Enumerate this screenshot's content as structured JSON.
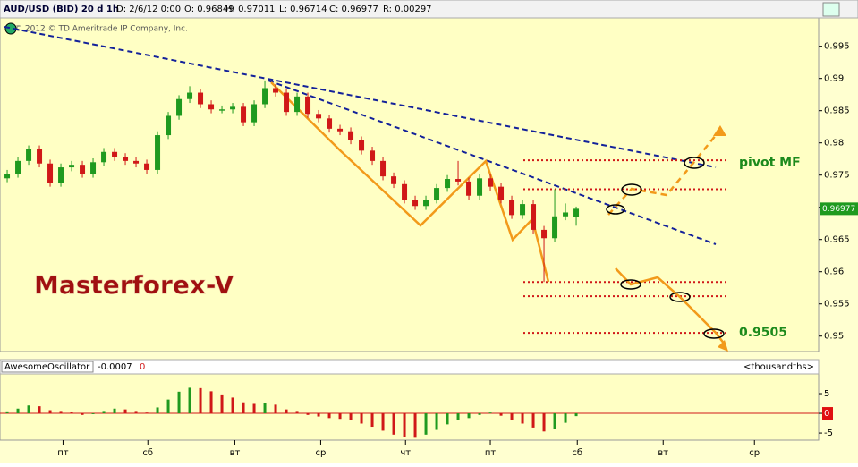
{
  "header": {
    "symbol": "AUD/USD (BID) 20 d 1h",
    "date": "D: 2/6/12 0:00",
    "open": "O: 0.96849",
    "high": "H: 0.97011",
    "low": "L: 0.96714",
    "close": "C: 0.96977",
    "range": "R: 0.00297",
    "copyright": "© 2012 © TD Ameritrade IP Company, Inc.",
    "watermark": "Masterforex-V",
    "pivot": "pivot MF",
    "target": "0.9505"
  },
  "chart_data": [
    {
      "type": "candlestick",
      "up_color": "#1f9a1f",
      "down_color": "#d01818",
      "level_color": "#d01818",
      "xlim": [
        -0.67,
        75.58
      ],
      "xticks": [
        {
          "value": 5.2,
          "label": "пт"
        },
        {
          "value": 13.1,
          "label": "сб"
        },
        {
          "value": 21.2,
          "label": "вт"
        },
        {
          "value": 29.2,
          "label": "ср"
        },
        {
          "value": 37.1,
          "label": "чт"
        },
        {
          "value": 45,
          "label": "пт"
        },
        {
          "value": 53.1,
          "label": "сб"
        },
        {
          "value": 61.1,
          "label": "вт"
        },
        {
          "value": 69.6,
          "label": "ср"
        }
      ],
      "ylim": [
        0.9476,
        0.9994
      ],
      "yticks": [
        0.95,
        0.955,
        0.96,
        0.965,
        0.97,
        0.975,
        0.98,
        0.985,
        0.99,
        0.995
      ],
      "last_price": 0.96977,
      "levels": [
        0.9773,
        0.9728,
        0.9584,
        0.9562,
        0.9505
      ],
      "open": [
        0.9745,
        0.9752,
        0.9772,
        0.979,
        0.9768,
        0.9738,
        0.9762,
        0.9766,
        0.9752,
        0.977,
        0.9786,
        0.9778,
        0.9772,
        0.9768,
        0.9758,
        0.9812,
        0.9842,
        0.9868,
        0.9878,
        0.986,
        0.985,
        0.9852,
        0.9856,
        0.9832,
        0.986,
        0.9885,
        0.9878,
        0.9848,
        0.9872,
        0.9845,
        0.9838,
        0.9822,
        0.9818,
        0.9804,
        0.9788,
        0.9772,
        0.9748,
        0.9736,
        0.9712,
        0.9702,
        0.9712,
        0.973,
        0.9744,
        0.974,
        0.9718,
        0.9745,
        0.9732,
        0.9712,
        0.9688,
        0.9705,
        0.9665,
        0.9652,
        0.9686,
        0.96849
      ],
      "high": [
        0.9758,
        0.9778,
        0.9796,
        0.9796,
        0.9774,
        0.9768,
        0.9772,
        0.9772,
        0.9776,
        0.9792,
        0.9792,
        0.9784,
        0.9778,
        0.9774,
        0.9818,
        0.9848,
        0.9874,
        0.9888,
        0.9884,
        0.9866,
        0.9858,
        0.9862,
        0.9862,
        0.9866,
        0.9897,
        0.9891,
        0.9884,
        0.9878,
        0.9878,
        0.9851,
        0.9844,
        0.9828,
        0.9824,
        0.981,
        0.9794,
        0.9778,
        0.9754,
        0.9742,
        0.9718,
        0.9718,
        0.9736,
        0.975,
        0.9772,
        0.9746,
        0.9751,
        0.9751,
        0.9738,
        0.9718,
        0.9711,
        0.9711,
        0.9671,
        0.9728,
        0.9706,
        0.97011
      ],
      "low": [
        0.9739,
        0.9746,
        0.9766,
        0.9762,
        0.9732,
        0.9732,
        0.9756,
        0.9746,
        0.9746,
        0.9764,
        0.9772,
        0.9766,
        0.9762,
        0.9752,
        0.9752,
        0.9806,
        0.9836,
        0.9862,
        0.9854,
        0.9846,
        0.9846,
        0.9846,
        0.9826,
        0.9826,
        0.9854,
        0.9872,
        0.9842,
        0.9842,
        0.9839,
        0.9832,
        0.9816,
        0.9812,
        0.9798,
        0.9782,
        0.9766,
        0.9742,
        0.973,
        0.9706,
        0.9696,
        0.9696,
        0.9706,
        0.9724,
        0.9734,
        0.9712,
        0.9712,
        0.9726,
        0.9706,
        0.9682,
        0.9682,
        0.9659,
        0.9584,
        0.9646,
        0.968,
        0.96714
      ],
      "close": [
        0.9752,
        0.9772,
        0.979,
        0.9768,
        0.9738,
        0.9762,
        0.9766,
        0.9752,
        0.977,
        0.9786,
        0.9778,
        0.9772,
        0.9768,
        0.9758,
        0.9812,
        0.9842,
        0.9868,
        0.9878,
        0.986,
        0.9852,
        0.9852,
        0.9856,
        0.9832,
        0.986,
        0.9885,
        0.9878,
        0.9848,
        0.9872,
        0.9845,
        0.9838,
        0.9822,
        0.9818,
        0.9804,
        0.9788,
        0.9772,
        0.9748,
        0.9736,
        0.9712,
        0.9702,
        0.9712,
        0.973,
        0.9744,
        0.974,
        0.9718,
        0.9745,
        0.9732,
        0.9712,
        0.9688,
        0.9705,
        0.9665,
        0.9652,
        0.9686,
        0.9692,
        0.96977
      ]
    },
    {
      "type": "bar",
      "name": "AwesomeOscillator",
      "current": "-0.0007",
      "zero_label": "0",
      "unit": "<thousandths>",
      "up_color": "#1f9a1f",
      "down_color": "#d01818",
      "xlim": [
        -0.67,
        75.58
      ],
      "ylim": [
        -6.8,
        10
      ],
      "yticks": [
        5,
        0,
        -5
      ],
      "values": [
        0.5,
        1.2,
        2.0,
        1.8,
        0.8,
        0.6,
        0.4,
        -0.4,
        -0.2,
        0.6,
        1.2,
        1.0,
        0.6,
        0.2,
        1.5,
        3.5,
        5.5,
        6.5,
        6.4,
        5.6,
        4.8,
        4.0,
        2.8,
        2.4,
        2.6,
        2.2,
        1.0,
        0.6,
        -0.4,
        -0.8,
        -1.2,
        -1.4,
        -1.8,
        -2.6,
        -3.4,
        -4.4,
        -5.4,
        -6.0,
        -6.2,
        -5.4,
        -4.2,
        -2.8,
        -1.6,
        -1.2,
        -0.4,
        0.2,
        -0.6,
        -1.8,
        -2.6,
        -3.6,
        -4.6,
        -4.0,
        -2.4,
        -0.7
      ]
    }
  ]
}
